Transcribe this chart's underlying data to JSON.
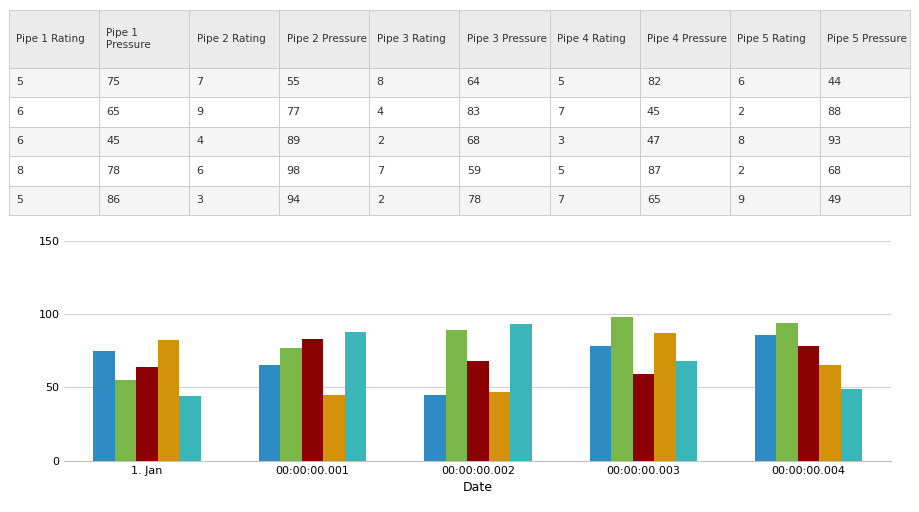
{
  "table_headers": [
    "Pipe 1 Rating",
    "Pipe 1\nPressure",
    "Pipe 2 Rating",
    "Pipe 2 Pressure",
    "Pipe 3 Rating",
    "Pipe 3 Pressure",
    "Pipe 4 Rating",
    "Pipe 4 Pressure",
    "Pipe 5 Rating",
    "Pipe 5 Pressure"
  ],
  "table_data": [
    [
      "5",
      "75",
      "7",
      "55",
      "8",
      "64",
      "5",
      "82",
      "6",
      "44"
    ],
    [
      "6",
      "65",
      "9",
      "77",
      "4",
      "83",
      "7",
      "45",
      "2",
      "88"
    ],
    [
      "6",
      "45",
      "4",
      "89",
      "2",
      "68",
      "3",
      "47",
      "8",
      "93"
    ],
    [
      "8",
      "78",
      "6",
      "98",
      "7",
      "59",
      "5",
      "87",
      "2",
      "68"
    ],
    [
      "5",
      "86",
      "3",
      "94",
      "2",
      "78",
      "7",
      "65",
      "9",
      "49"
    ]
  ],
  "bar_categories": [
    "1. Jan",
    "00:00:00.001",
    "00:00:00.002",
    "00:00:00.003",
    "00:00:00.004"
  ],
  "pipe1_pressure": [
    75,
    65,
    45,
    78,
    86
  ],
  "pipe2_pressure": [
    55,
    77,
    89,
    98,
    94
  ],
  "pipe3_pressure": [
    64,
    83,
    68,
    59,
    78
  ],
  "pipe4_pressure": [
    82,
    45,
    47,
    87,
    65
  ],
  "pipe5_pressure": [
    44,
    88,
    93,
    68,
    49
  ],
  "bar_colors": [
    "#2e8bc4",
    "#7ab648",
    "#8b0000",
    "#d4920a",
    "#3ab5b8"
  ],
  "ylabel_max": 150,
  "y_ticks": [
    0,
    50,
    100,
    150
  ],
  "xlabel": "Date",
  "legend_labels": [
    "Pipe 1 Pressure",
    "Pipe 2 Pressure",
    "Pipe 3 Pressure",
    "Pipe 4 Pressure",
    "Pipe 5 Pressure"
  ],
  "table_bg_header": "#ebebeb",
  "table_bg_odd": "#f5f5f5",
  "table_bg_even": "#ffffff",
  "table_line_color": "#c8c8c8",
  "grid_color": "#d0d0d0",
  "fig_width": 9.19,
  "fig_height": 5.12
}
